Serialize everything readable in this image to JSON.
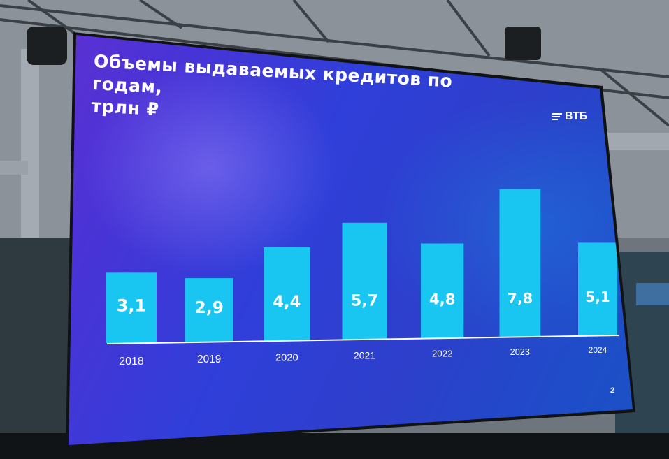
{
  "slide": {
    "title": "Объемы выдаваемых кредитов по годам,\nтрлн ₽",
    "logo_text": "ВТБ",
    "page_number": "2"
  },
  "chart_data": {
    "type": "bar",
    "title": "Объемы выдаваемых кредитов по годам, трлн ₽",
    "categories": [
      "2018",
      "2019",
      "2020",
      "2021",
      "2022",
      "2023",
      "2024"
    ],
    "values": [
      3.1,
      2.9,
      4.4,
      5.7,
      4.8,
      7.8,
      5.1
    ],
    "value_labels": [
      "3,1",
      "2,9",
      "4,4",
      "5,7",
      "4,8",
      "7,8",
      "5,1"
    ],
    "ylim": [
      0,
      8
    ],
    "grid": false,
    "bar_color": "#19c6f2"
  }
}
